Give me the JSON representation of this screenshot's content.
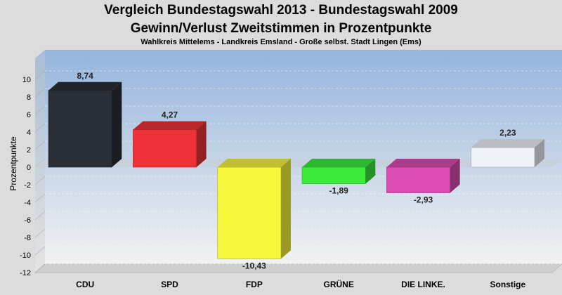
{
  "header": {
    "title_line1": "Vergleich Bundestagswahl 2013 - Bundestagswahl 2009",
    "title_line2": "Gewinn/Verlust Zweitstimmen in Prozentpunkte",
    "subtitle": "Wahlkreis Mittelems - Landkreis Emsland - Große selbst. Stadt Lingen (Ems)"
  },
  "chart_data": {
    "type": "bar",
    "title": "Vergleich Bundestagswahl 2013 - Bundestagswahl 2009 / Gewinn/Verlust Zweitstimmen in Prozentpunkte",
    "subtitle": "Wahlkreis Mittelems - Landkreis Emsland - Große selbst. Stadt Lingen (Ems)",
    "xlabel": "",
    "ylabel": "Prozentpunkte",
    "ylim": [
      -12,
      10
    ],
    "yticks": [
      10,
      8,
      6,
      4,
      2,
      0,
      -2,
      -4,
      -6,
      -8,
      -10,
      -12
    ],
    "grid": true,
    "categories": [
      "CDU",
      "SPD",
      "FDP",
      "GRÜNE",
      "DIE LINKE.",
      "Sonstige"
    ],
    "values": [
      8.74,
      4.27,
      -10.43,
      -1.89,
      -2.93,
      2.23
    ],
    "value_labels": [
      "8,74",
      "4,27",
      "-10,43",
      "-1,89",
      "-2,93",
      "2,23"
    ],
    "colors": [
      "#2a2e36",
      "#ee3338",
      "#f6f63a",
      "#3cec3c",
      "#dc4cb4",
      "#eef2f8"
    ]
  }
}
